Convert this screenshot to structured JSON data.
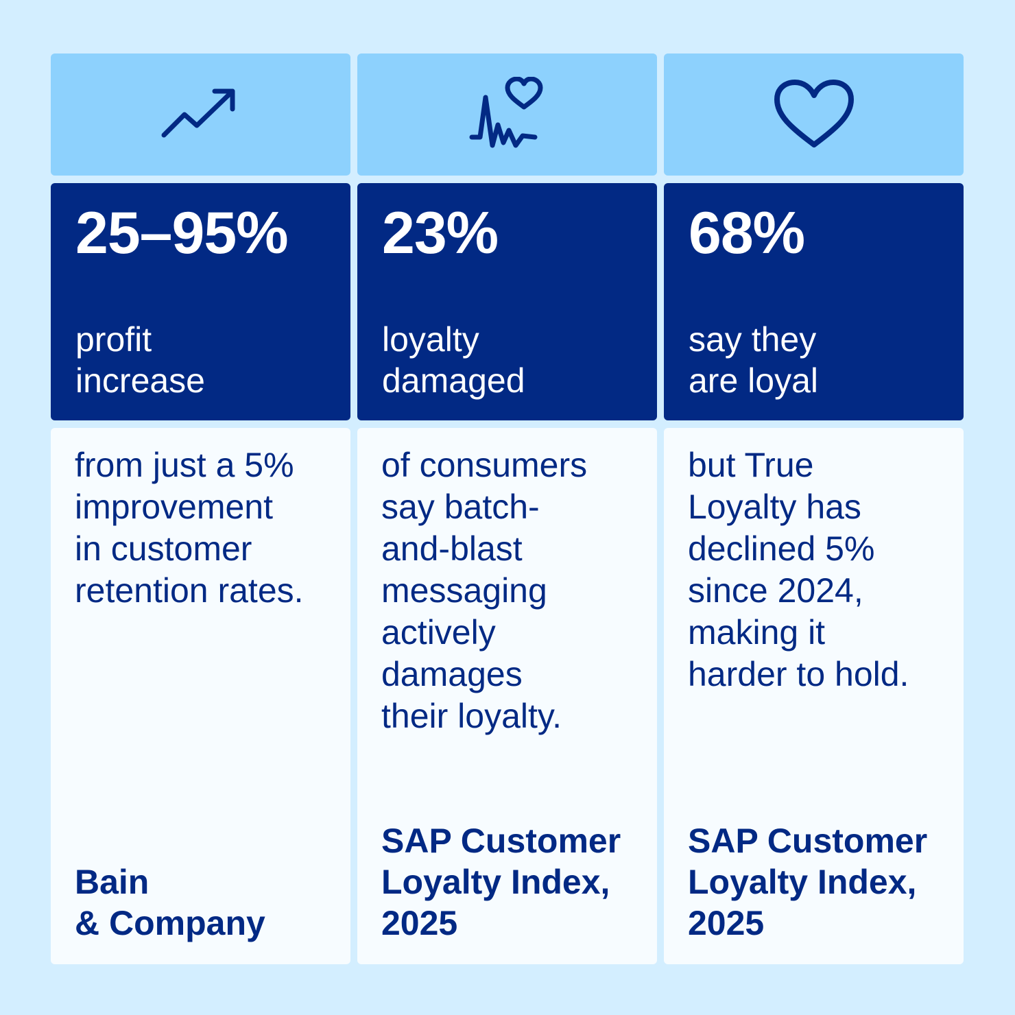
{
  "colors": {
    "background": "#d3eeff",
    "icon_panel": "#8dd1fd",
    "stat_panel": "#022984",
    "desc_panel": "#f7fcff",
    "text_dark": "#022984",
    "text_light": "#ffffff"
  },
  "columns": [
    {
      "icon": "trending-up-arrow-icon",
      "stat_value": "25–95%",
      "stat_label": "profit\nincrease",
      "description": "from just a 5%\nimprovement\nin customer\nretention rates.",
      "source": "Bain\n& Company"
    },
    {
      "icon": "heartbeat-heart-icon",
      "stat_value": "23%",
      "stat_label": "loyalty\ndamaged",
      "description": "of consumers\nsay batch-\nand-blast\nmessaging\nactively\ndamages\ntheir loyalty.",
      "source": "SAP Customer\nLoyalty Index,\n2025"
    },
    {
      "icon": "heart-icon",
      "stat_value": "68%",
      "stat_label": "say they\nare loyal",
      "description": "but True\nLoyalty has\ndeclined 5%\nsince 2024,\nmaking it\nharder to hold.",
      "source": "SAP Customer\nLoyalty Index,\n2025"
    }
  ]
}
